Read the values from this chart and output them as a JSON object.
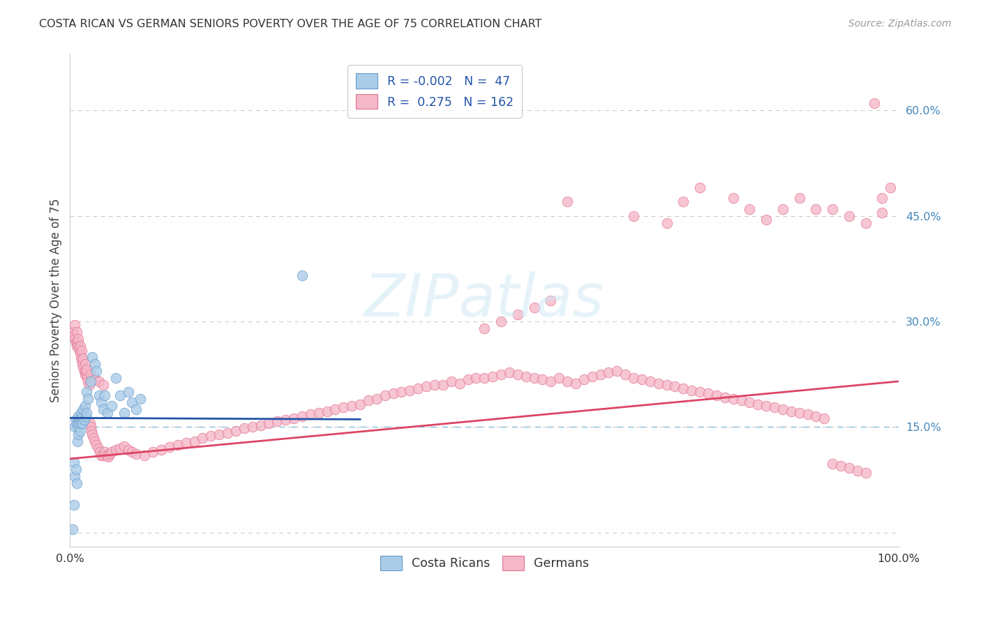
{
  "title": "COSTA RICAN VS GERMAN SENIORS POVERTY OVER THE AGE OF 75 CORRELATION CHART",
  "source": "Source: ZipAtlas.com",
  "ylabel": "Seniors Poverty Over the Age of 75",
  "xlim": [
    0.0,
    1.0
  ],
  "ylim": [
    -0.02,
    0.68
  ],
  "yticks": [
    0.0,
    0.15,
    0.3,
    0.45,
    0.6
  ],
  "hline_y": 0.15,
  "blue_color": "#aacce8",
  "blue_edge": "#6699cc",
  "pink_color": "#f5b8c8",
  "pink_edge": "#e07090",
  "trend_blue": "#2255aa",
  "trend_pink": "#dd4466",
  "watermark_text": "ZIPatlas",
  "cr_trend_x": [
    0.0,
    0.35
  ],
  "cr_trend_y": [
    0.163,
    0.161
  ],
  "de_trend_x": [
    0.0,
    1.0
  ],
  "de_trend_y": [
    0.105,
    0.215
  ],
  "cr_x": [
    0.003,
    0.005,
    0.005,
    0.006,
    0.006,
    0.007,
    0.007,
    0.008,
    0.008,
    0.009,
    0.01,
    0.01,
    0.01,
    0.01,
    0.011,
    0.012,
    0.012,
    0.013,
    0.013,
    0.014,
    0.015,
    0.015,
    0.016,
    0.017,
    0.018,
    0.019,
    0.02,
    0.02,
    0.022,
    0.025,
    0.027,
    0.03,
    0.032,
    0.035,
    0.038,
    0.04,
    0.042,
    0.045,
    0.05,
    0.055,
    0.06,
    0.065,
    0.07,
    0.075,
    0.08,
    0.085,
    0.28
  ],
  "cr_y": [
    0.005,
    0.04,
    0.1,
    0.08,
    0.15,
    0.09,
    0.16,
    0.07,
    0.155,
    0.13,
    0.14,
    0.15,
    0.16,
    0.165,
    0.155,
    0.145,
    0.16,
    0.155,
    0.17,
    0.16,
    0.155,
    0.165,
    0.175,
    0.16,
    0.18,
    0.165,
    0.17,
    0.2,
    0.19,
    0.215,
    0.25,
    0.24,
    0.23,
    0.195,
    0.185,
    0.175,
    0.195,
    0.17,
    0.18,
    0.22,
    0.195,
    0.17,
    0.2,
    0.185,
    0.175,
    0.19,
    0.365
  ],
  "de_x": [
    0.004,
    0.005,
    0.006,
    0.007,
    0.008,
    0.009,
    0.01,
    0.011,
    0.012,
    0.013,
    0.014,
    0.015,
    0.016,
    0.017,
    0.018,
    0.019,
    0.02,
    0.021,
    0.022,
    0.023,
    0.024,
    0.025,
    0.026,
    0.027,
    0.028,
    0.03,
    0.032,
    0.034,
    0.036,
    0.038,
    0.04,
    0.042,
    0.044,
    0.046,
    0.048,
    0.05,
    0.055,
    0.06,
    0.065,
    0.07,
    0.075,
    0.08,
    0.09,
    0.1,
    0.11,
    0.12,
    0.13,
    0.14,
    0.15,
    0.16,
    0.17,
    0.18,
    0.19,
    0.2,
    0.21,
    0.22,
    0.23,
    0.24,
    0.25,
    0.26,
    0.27,
    0.28,
    0.29,
    0.3,
    0.31,
    0.32,
    0.33,
    0.34,
    0.35,
    0.36,
    0.37,
    0.38,
    0.39,
    0.4,
    0.41,
    0.42,
    0.43,
    0.44,
    0.45,
    0.46,
    0.47,
    0.48,
    0.49,
    0.5,
    0.51,
    0.52,
    0.53,
    0.54,
    0.55,
    0.56,
    0.57,
    0.58,
    0.59,
    0.6,
    0.61,
    0.62,
    0.63,
    0.64,
    0.65,
    0.66,
    0.67,
    0.68,
    0.69,
    0.7,
    0.71,
    0.72,
    0.73,
    0.74,
    0.75,
    0.76,
    0.77,
    0.78,
    0.79,
    0.8,
    0.81,
    0.82,
    0.83,
    0.84,
    0.85,
    0.86,
    0.87,
    0.88,
    0.89,
    0.9,
    0.91,
    0.92,
    0.93,
    0.94,
    0.95,
    0.96,
    0.97,
    0.98,
    0.99,
    0.6,
    0.68,
    0.72,
    0.74,
    0.76,
    0.8,
    0.82,
    0.84,
    0.86,
    0.88,
    0.9,
    0.92,
    0.94,
    0.96,
    0.98,
    0.5,
    0.52,
    0.54,
    0.56,
    0.58,
    0.006,
    0.008,
    0.01,
    0.012,
    0.014,
    0.016,
    0.018,
    0.02,
    0.025,
    0.03,
    0.035,
    0.04
  ],
  "de_y": [
    0.285,
    0.28,
    0.275,
    0.27,
    0.265,
    0.27,
    0.265,
    0.26,
    0.255,
    0.25,
    0.245,
    0.24,
    0.235,
    0.23,
    0.225,
    0.23,
    0.225,
    0.22,
    0.215,
    0.21,
    0.155,
    0.15,
    0.145,
    0.14,
    0.135,
    0.13,
    0.125,
    0.12,
    0.115,
    0.11,
    0.11,
    0.115,
    0.11,
    0.108,
    0.112,
    0.115,
    0.118,
    0.12,
    0.123,
    0.118,
    0.115,
    0.112,
    0.11,
    0.115,
    0.118,
    0.122,
    0.125,
    0.128,
    0.13,
    0.135,
    0.138,
    0.14,
    0.142,
    0.145,
    0.148,
    0.15,
    0.152,
    0.155,
    0.158,
    0.16,
    0.162,
    0.165,
    0.168,
    0.17,
    0.172,
    0.175,
    0.178,
    0.18,
    0.182,
    0.188,
    0.19,
    0.195,
    0.198,
    0.2,
    0.202,
    0.205,
    0.208,
    0.21,
    0.21,
    0.215,
    0.212,
    0.218,
    0.22,
    0.22,
    0.222,
    0.225,
    0.228,
    0.225,
    0.222,
    0.22,
    0.218,
    0.215,
    0.22,
    0.215,
    0.212,
    0.218,
    0.222,
    0.225,
    0.228,
    0.23,
    0.225,
    0.22,
    0.218,
    0.215,
    0.212,
    0.21,
    0.208,
    0.205,
    0.202,
    0.2,
    0.198,
    0.195,
    0.192,
    0.19,
    0.188,
    0.185,
    0.182,
    0.18,
    0.178,
    0.175,
    0.172,
    0.17,
    0.168,
    0.165,
    0.162,
    0.098,
    0.095,
    0.092,
    0.088,
    0.085,
    0.61,
    0.475,
    0.49,
    0.47,
    0.45,
    0.44,
    0.47,
    0.49,
    0.475,
    0.46,
    0.445,
    0.46,
    0.475,
    0.46,
    0.46,
    0.45,
    0.44,
    0.455,
    0.29,
    0.3,
    0.31,
    0.32,
    0.33,
    0.295,
    0.285,
    0.275,
    0.265,
    0.258,
    0.248,
    0.24,
    0.232,
    0.225,
    0.218,
    0.215,
    0.21
  ]
}
